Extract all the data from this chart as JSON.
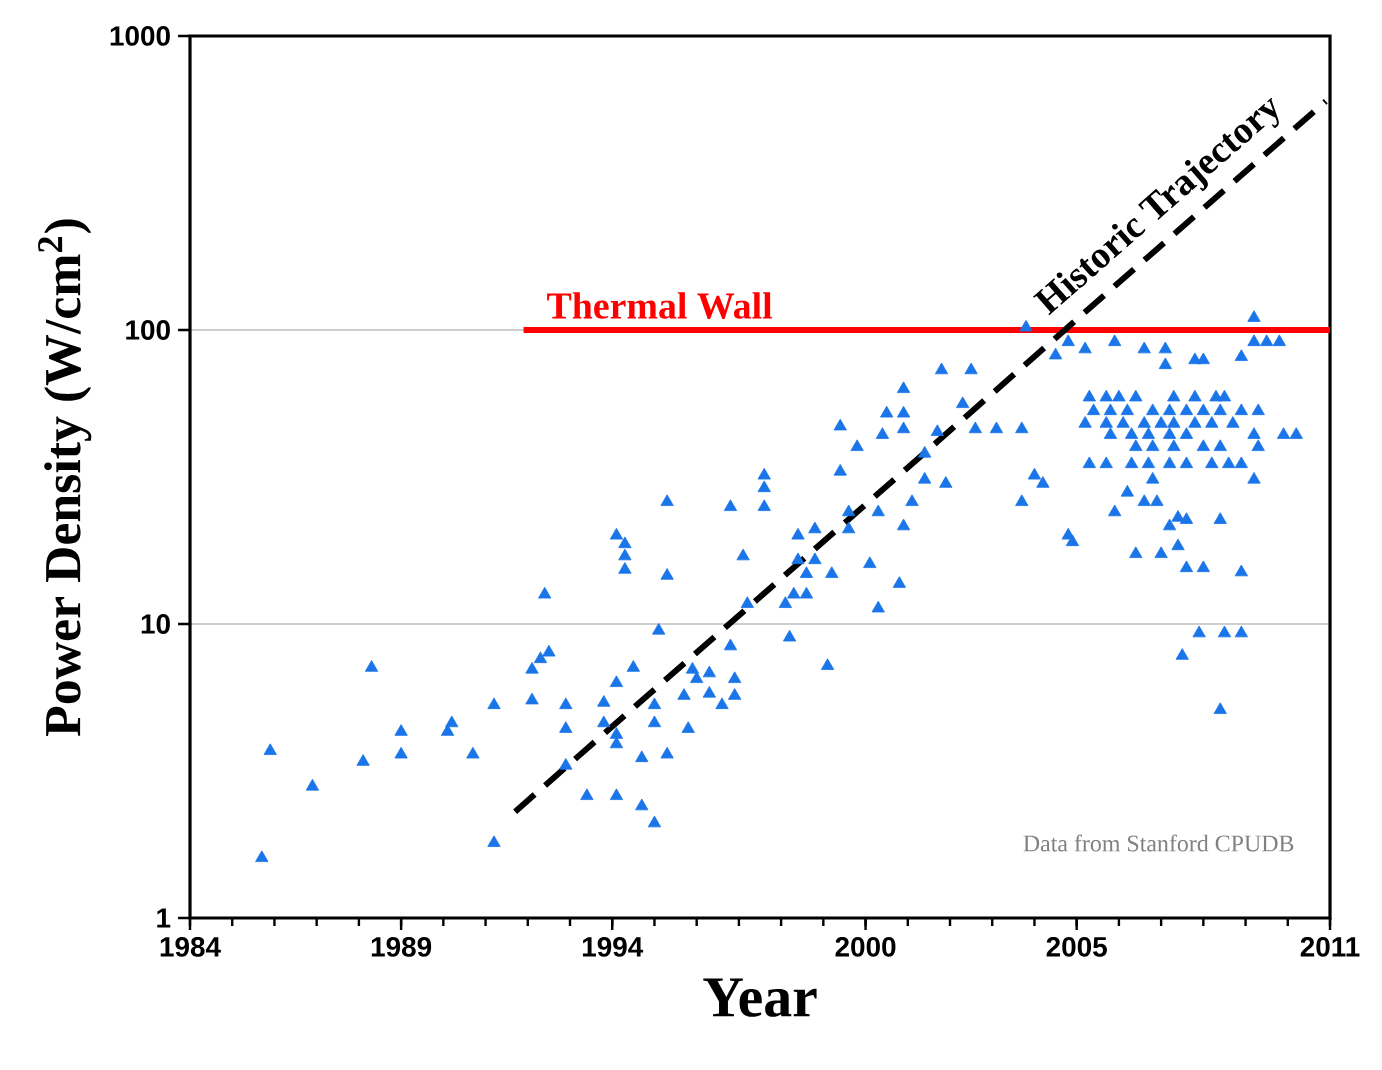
{
  "chart_data": {
    "type": "scatter",
    "xlabel": "Year",
    "ylabel": "Power Density (W/cm$^{2}$)",
    "xlim": [
      1984,
      2011
    ],
    "xticks": [
      1984,
      1989,
      1994,
      2000,
      2005,
      2011
    ],
    "ylim": [
      1,
      1000
    ],
    "yticks": [
      1,
      10,
      100,
      1000
    ],
    "log": "y",
    "grid": "y",
    "marker": "triangle",
    "annotations": [
      "Data from Stanford CPUDB"
    ],
    "series": [
      {
        "color": "#1a75e8",
        "x": [
          1985.7,
          1985.9,
          1986.9,
          1988.1,
          1988.3,
          1989.0,
          1989.0,
          1990.1,
          1990.2,
          1990.7,
          1991.2,
          1991.2,
          1992.1,
          1992.1,
          1992.3,
          1992.4,
          1992.5,
          1992.9,
          1992.9,
          1992.9,
          1993.4,
          1993.8,
          1993.8,
          1994.1,
          1994.1,
          1994.1,
          1994.1,
          1994.1,
          1994.3,
          1994.3,
          1994.3,
          1994.5,
          1994.7,
          1994.7,
          1995.0,
          1995.0,
          1995.0,
          1995.1,
          1995.3,
          1995.3,
          1995.3,
          1995.7,
          1995.8,
          1995.9,
          1996.0,
          1996.3,
          1996.3,
          1996.6,
          1996.8,
          1996.8,
          1996.9,
          1996.9,
          1997.1,
          1997.2,
          1997.6,
          1997.6,
          1997.6,
          1998.2,
          1998.1,
          1998.3,
          1998.4,
          1998.4,
          1998.6,
          1998.6,
          1998.8,
          1998.8,
          1999.1,
          1999.2,
          1999.4,
          1999.4,
          1999.6,
          1999.6,
          1999.8,
          2000.1,
          2000.3,
          2000.3,
          2000.4,
          2000.5,
          2000.8,
          2000.9,
          2000.9,
          2000.9,
          2000.9,
          2001.1,
          2001.4,
          2001.4,
          2001.7,
          2001.8,
          2001.9,
          2002.3,
          2002.5,
          2002.6,
          2003.1,
          2003.7,
          2003.7,
          2003.8,
          2004.0,
          2004.2,
          2004.5,
          2004.8,
          2004.8,
          2004.9,
          2005.2,
          2005.9,
          2006.6,
          2007.1,
          2007.1,
          2007.8,
          2008.0,
          2008.9,
          2009.2,
          2009.2,
          2009.5,
          2009.8,
          2005.3,
          2005.7,
          2006.0,
          2006.4,
          2007.3,
          2007.8,
          2008.3,
          2008.5,
          2005.4,
          2005.8,
          2006.2,
          2006.8,
          2007.2,
          2007.6,
          2008.0,
          2008.4,
          2008.9,
          2009.3,
          2005.2,
          2005.7,
          2006.1,
          2006.6,
          2007.0,
          2007.3,
          2007.8,
          2008.2,
          2008.7,
          2005.8,
          2006.3,
          2006.7,
          2007.2,
          2007.6,
          2009.2,
          2009.9,
          2010.2,
          2006.4,
          2006.8,
          2007.3,
          2008.0,
          2008.4,
          2009.3,
          2005.3,
          2005.7,
          2006.3,
          2006.7,
          2007.2,
          2007.6,
          2008.2,
          2008.6,
          2008.9,
          2006.8,
          2009.2,
          2006.2,
          2005.9,
          2006.6,
          2006.9,
          2007.2,
          2007.4,
          2007.6,
          2008.4,
          2006.4,
          2007.0,
          2007.4,
          2007.6,
          2008.0,
          2008.9,
          2007.5,
          2007.9,
          2008.5,
          2008.9,
          2008.4
        ],
        "values": [
          1.6,
          3.7,
          2.8,
          3.4,
          7.1,
          4.3,
          3.6,
          4.3,
          4.6,
          3.6,
          5.3,
          1.8,
          7.0,
          5.5,
          7.6,
          12.6,
          8.0,
          5.3,
          4.4,
          3.3,
          2.6,
          5.4,
          4.6,
          6.3,
          4.2,
          3.9,
          2.6,
          20,
          18.7,
          17,
          15.3,
          7.1,
          3.5,
          2.4,
          5.3,
          4.6,
          2.1,
          9.5,
          26,
          14.6,
          3.6,
          5.7,
          4.4,
          7.0,
          6.5,
          5.8,
          6.8,
          5.3,
          25,
          8.4,
          6.5,
          5.7,
          17,
          11.7,
          32,
          29,
          25,
          9.0,
          11.7,
          12.6,
          20,
          16.5,
          12.6,
          14.8,
          21,
          16.5,
          7.2,
          14.8,
          47,
          33,
          24,
          21,
          40,
          16,
          24,
          11.3,
          44,
          52,
          13.7,
          63,
          52,
          46,
          21.5,
          26,
          38,
          31,
          45,
          73,
          30,
          56,
          73,
          46,
          46,
          46,
          26,
          102,
          32,
          30,
          82,
          91,
          20,
          19,
          86,
          91,
          86,
          86,
          76,
          79,
          79,
          81,
          110,
          91,
          91,
          91,
          59,
          59,
          59,
          59,
          59,
          59,
          59,
          59,
          53,
          53,
          53,
          53,
          53,
          53,
          53,
          53,
          53,
          53,
          48,
          48,
          48,
          48,
          48,
          48,
          48,
          48,
          48,
          44,
          44,
          44,
          44,
          44,
          44,
          44,
          44,
          40,
          40,
          40,
          40,
          40,
          40,
          35,
          35,
          35,
          35,
          35,
          35,
          35,
          35,
          35,
          31,
          31,
          28,
          24,
          26,
          26,
          21.5,
          23,
          22.6,
          22.6,
          17.3,
          17.3,
          18.4,
          15.5,
          15.5,
          15,
          7.8,
          9.3,
          9.3,
          9.3,
          5.1
        ]
      },
      {
        "type": "line",
        "name": "Thermal Wall",
        "color": "#ff0000",
        "line_style": "solid",
        "marker": "none",
        "x": [
          1991.9,
          2011
        ],
        "values": [
          100,
          100
        ]
      },
      {
        "type": "line",
        "name": "Historic Trajectory",
        "color": "#000000",
        "line_style": "dashed",
        "marker": "none",
        "x": [
          1991.7,
          2010.9
        ],
        "values": [
          2.3,
          600
        ]
      }
    ]
  }
}
